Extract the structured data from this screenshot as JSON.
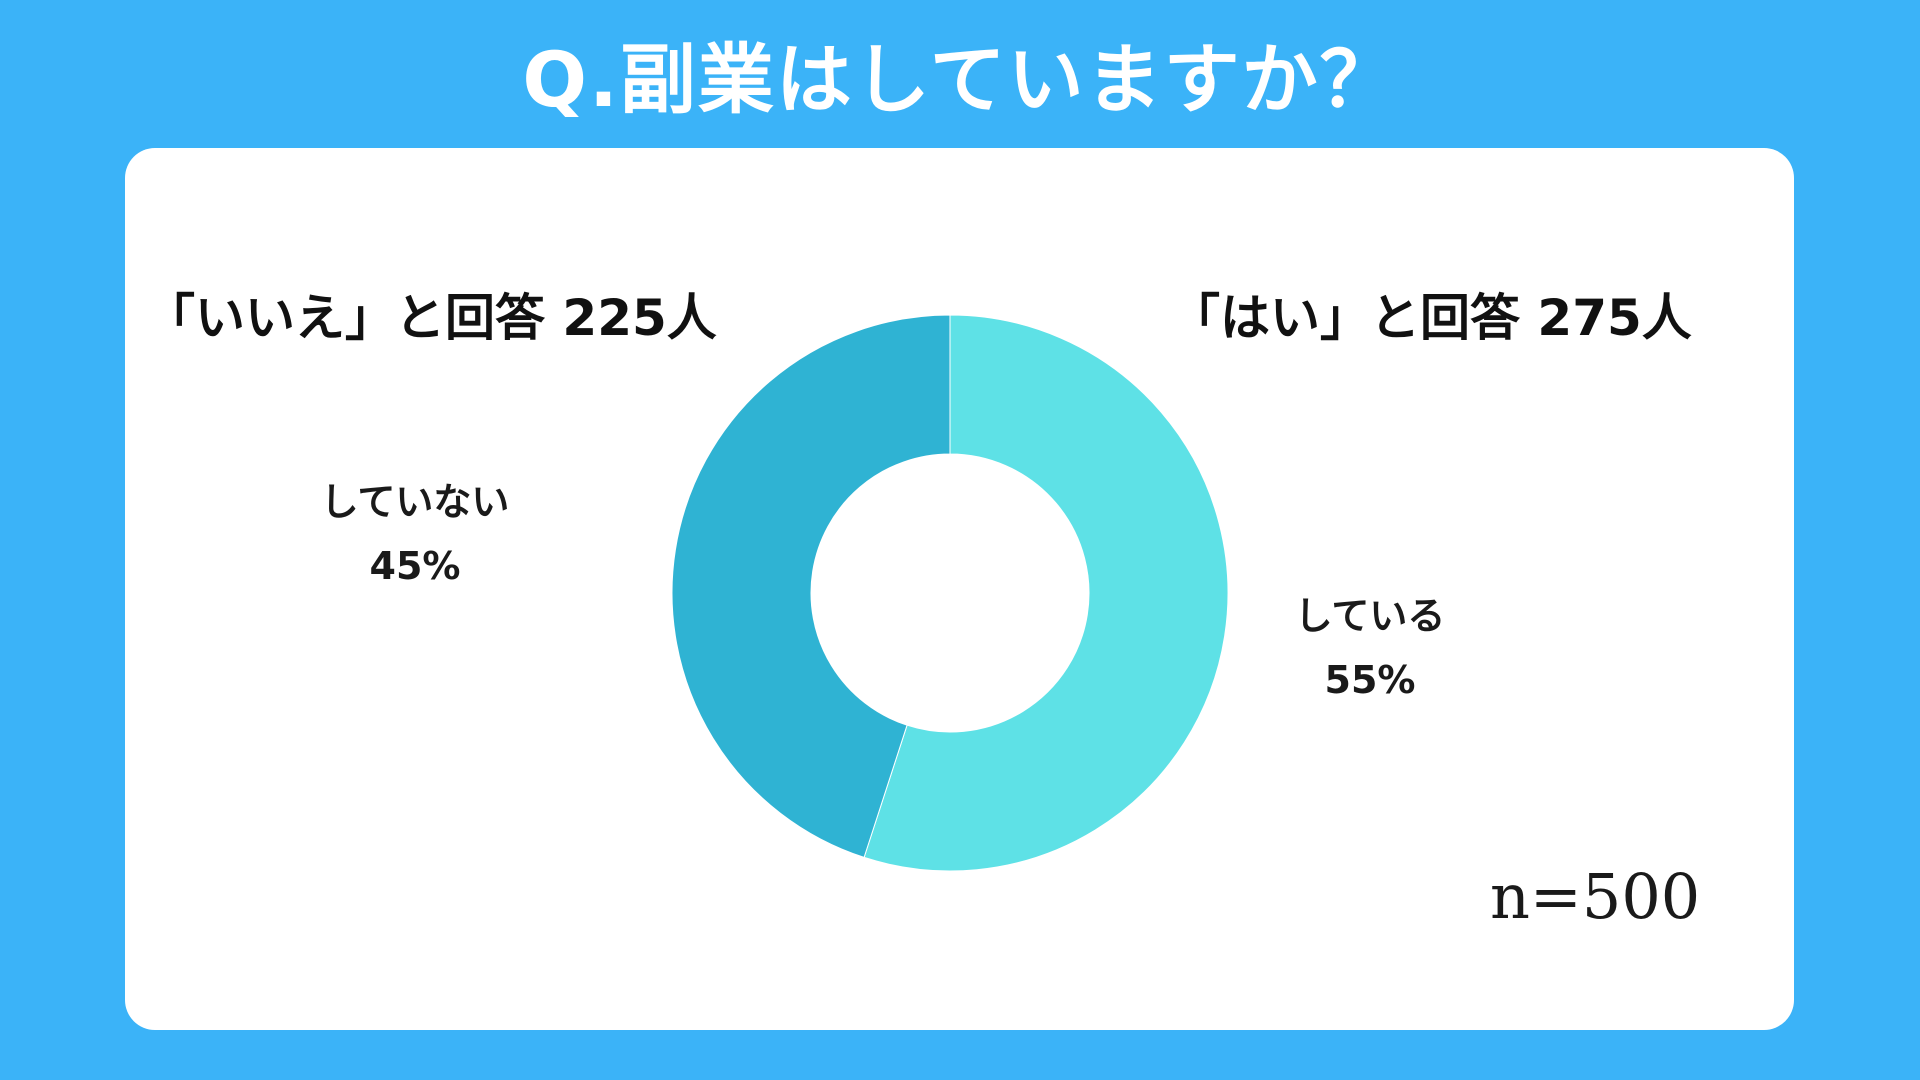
{
  "title": "Q.副業はしていますか？",
  "headline_no": "「いいえ」と回答 225人",
  "headline_yes": "「はい」と回答 275人",
  "sample_size": "n=500",
  "colors": {
    "background": "#3bb3f8",
    "card": "#ffffff",
    "yes": "#5ee1e6",
    "no": "#2fb3d3"
  },
  "chart_data": {
    "type": "pie",
    "variant": "donut",
    "total": 500,
    "slices": [
      {
        "label": "している",
        "value": 55,
        "count": 275,
        "value_label": "55%",
        "color": "#5ee1e6"
      },
      {
        "label": "していない",
        "value": 45,
        "count": 225,
        "value_label": "45%",
        "color": "#2fb3d3"
      }
    ]
  }
}
